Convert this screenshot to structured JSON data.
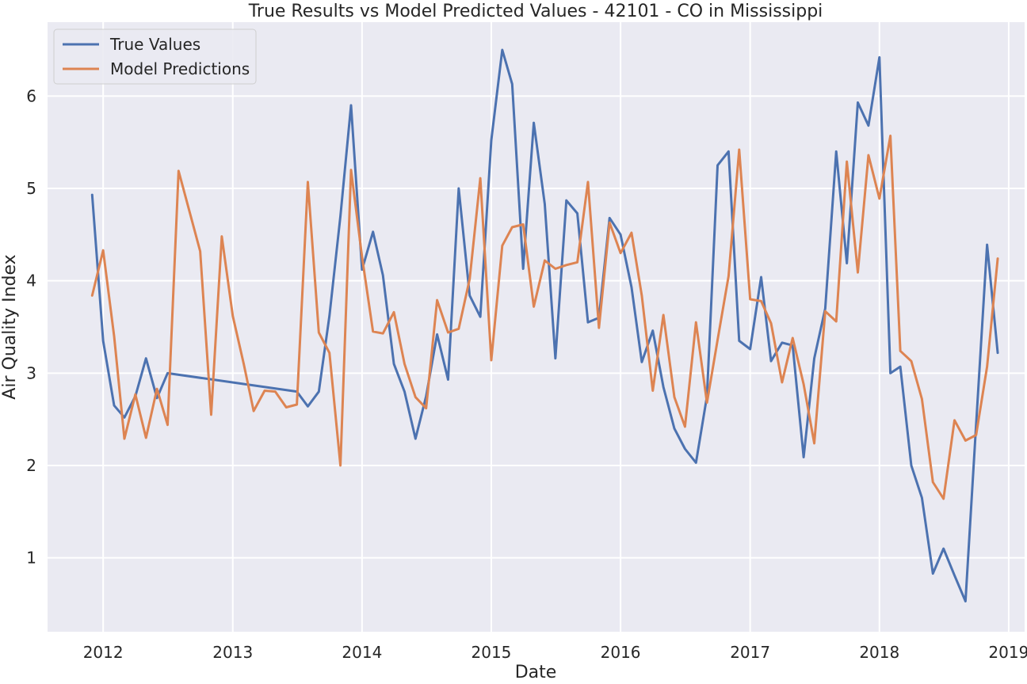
{
  "chart_data": {
    "type": "line",
    "title": "True Results vs Model Predicted Values - 42101 - CO in Mississippi",
    "xlabel": "Date",
    "ylabel": "Air Quality Index",
    "xlim": [
      "2011-07-28",
      "2019-02-15"
    ],
    "ylim": [
      0.2,
      6.8
    ],
    "x_ticks": [
      "2012",
      "2013",
      "2014",
      "2015",
      "2016",
      "2017",
      "2018",
      "2019"
    ],
    "y_ticks": [
      "1",
      "2",
      "3",
      "4",
      "5",
      "6"
    ],
    "grid": true,
    "legend_position": "top-left",
    "colors": {
      "background": "#eaeaf2",
      "grid": "#ffffff",
      "true_values": "#4c72b0",
      "model_predictions": "#dd8452"
    },
    "series": [
      {
        "name": "True Values",
        "points": [
          [
            "2011-12-01",
            4.93
          ],
          [
            "2012-01-01",
            3.35
          ],
          [
            "2012-02-01",
            2.65
          ],
          [
            "2012-03-01",
            2.52
          ],
          [
            "2012-04-01",
            2.75
          ],
          [
            "2012-05-01",
            3.16
          ],
          [
            "2012-06-01",
            2.73
          ],
          [
            "2012-07-01",
            3.0
          ],
          [
            "2013-07-01",
            2.8
          ],
          [
            "2013-08-01",
            2.64
          ],
          [
            "2013-09-01",
            2.8
          ],
          [
            "2013-10-01",
            3.62
          ],
          [
            "2013-11-01",
            4.7
          ],
          [
            "2013-12-01",
            5.9
          ],
          [
            "2014-01-01",
            4.12
          ],
          [
            "2014-02-01",
            4.53
          ],
          [
            "2014-03-01",
            4.06
          ],
          [
            "2014-04-01",
            3.1
          ],
          [
            "2014-05-01",
            2.8
          ],
          [
            "2014-06-01",
            2.29
          ],
          [
            "2014-07-01",
            2.75
          ],
          [
            "2014-08-01",
            3.42
          ],
          [
            "2014-09-01",
            2.93
          ],
          [
            "2014-10-01",
            5.0
          ],
          [
            "2014-11-01",
            3.84
          ],
          [
            "2014-12-01",
            3.61
          ],
          [
            "2015-01-01",
            5.52
          ],
          [
            "2015-02-01",
            6.5
          ],
          [
            "2015-03-01",
            6.13
          ],
          [
            "2015-04-01",
            4.13
          ],
          [
            "2015-05-01",
            5.71
          ],
          [
            "2015-06-01",
            4.83
          ],
          [
            "2015-07-01",
            3.16
          ],
          [
            "2015-08-01",
            4.87
          ],
          [
            "2015-09-01",
            4.73
          ],
          [
            "2015-10-01",
            3.55
          ],
          [
            "2015-11-01",
            3.6
          ],
          [
            "2015-12-01",
            4.68
          ],
          [
            "2016-01-01",
            4.5
          ],
          [
            "2016-02-01",
            3.93
          ],
          [
            "2016-03-01",
            3.12
          ],
          [
            "2016-04-01",
            3.46
          ],
          [
            "2016-05-01",
            2.85
          ],
          [
            "2016-06-01",
            2.4
          ],
          [
            "2016-07-01",
            2.18
          ],
          [
            "2016-08-01",
            2.03
          ],
          [
            "2016-09-01",
            2.75
          ],
          [
            "2016-10-01",
            5.25
          ],
          [
            "2016-11-01",
            5.4
          ],
          [
            "2016-12-01",
            3.35
          ],
          [
            "2017-01-01",
            3.26
          ],
          [
            "2017-02-01",
            4.04
          ],
          [
            "2017-03-01",
            3.13
          ],
          [
            "2017-04-01",
            3.33
          ],
          [
            "2017-05-01",
            3.3
          ],
          [
            "2017-06-01",
            2.09
          ],
          [
            "2017-07-01",
            3.16
          ],
          [
            "2017-08-01",
            3.7
          ],
          [
            "2017-09-01",
            5.4
          ],
          [
            "2017-10-01",
            4.19
          ],
          [
            "2017-11-01",
            5.93
          ],
          [
            "2017-12-01",
            5.68
          ],
          [
            "2018-01-01",
            6.42
          ],
          [
            "2018-02-01",
            3.0
          ],
          [
            "2018-03-01",
            3.07
          ],
          [
            "2018-04-01",
            2.0
          ],
          [
            "2018-05-01",
            1.65
          ],
          [
            "2018-06-01",
            0.83
          ],
          [
            "2018-07-01",
            1.1
          ],
          [
            "2018-08-01",
            0.81
          ],
          [
            "2018-09-01",
            0.53
          ],
          [
            "2018-10-01",
            2.44
          ],
          [
            "2018-11-01",
            4.39
          ],
          [
            "2018-12-01",
            3.22
          ]
        ]
      },
      {
        "name": "Model Predictions",
        "points": [
          [
            "2011-12-01",
            3.84
          ],
          [
            "2012-01-01",
            4.33
          ],
          [
            "2012-02-01",
            3.4
          ],
          [
            "2012-03-01",
            2.29
          ],
          [
            "2012-04-01",
            2.77
          ],
          [
            "2012-05-01",
            2.3
          ],
          [
            "2012-06-01",
            2.83
          ],
          [
            "2012-07-01",
            2.44
          ],
          [
            "2012-08-01",
            5.19
          ],
          [
            "2012-10-01",
            4.32
          ],
          [
            "2012-11-01",
            2.55
          ],
          [
            "2012-12-01",
            4.48
          ],
          [
            "2013-01-01",
            3.62
          ],
          [
            "2013-02-01",
            3.1
          ],
          [
            "2013-03-01",
            2.59
          ],
          [
            "2013-04-01",
            2.81
          ],
          [
            "2013-05-01",
            2.8
          ],
          [
            "2013-06-01",
            2.63
          ],
          [
            "2013-07-01",
            2.66
          ],
          [
            "2013-08-01",
            5.07
          ],
          [
            "2013-09-01",
            3.44
          ],
          [
            "2013-10-01",
            3.22
          ],
          [
            "2013-11-01",
            2.0
          ],
          [
            "2013-12-01",
            5.2
          ],
          [
            "2014-01-01",
            4.26
          ],
          [
            "2014-02-01",
            3.45
          ],
          [
            "2014-03-01",
            3.43
          ],
          [
            "2014-04-01",
            3.66
          ],
          [
            "2014-05-01",
            3.1
          ],
          [
            "2014-06-01",
            2.74
          ],
          [
            "2014-07-01",
            2.62
          ],
          [
            "2014-08-01",
            3.79
          ],
          [
            "2014-09-01",
            3.44
          ],
          [
            "2014-10-01",
            3.48
          ],
          [
            "2014-11-01",
            4.02
          ],
          [
            "2014-12-01",
            5.11
          ],
          [
            "2015-01-01",
            3.14
          ],
          [
            "2015-02-01",
            4.38
          ],
          [
            "2015-03-01",
            4.58
          ],
          [
            "2015-04-01",
            4.61
          ],
          [
            "2015-05-01",
            3.72
          ],
          [
            "2015-06-01",
            4.22
          ],
          [
            "2015-07-01",
            4.13
          ],
          [
            "2015-08-01",
            4.17
          ],
          [
            "2015-09-01",
            4.2
          ],
          [
            "2015-10-01",
            5.07
          ],
          [
            "2015-11-01",
            3.49
          ],
          [
            "2015-12-01",
            4.63
          ],
          [
            "2016-01-01",
            4.3
          ],
          [
            "2016-02-01",
            4.52
          ],
          [
            "2016-03-01",
            3.84
          ],
          [
            "2016-04-01",
            2.81
          ],
          [
            "2016-05-01",
            3.63
          ],
          [
            "2016-06-01",
            2.74
          ],
          [
            "2016-07-01",
            2.42
          ],
          [
            "2016-08-01",
            3.55
          ],
          [
            "2016-09-01",
            2.68
          ],
          [
            "2016-10-01",
            3.36
          ],
          [
            "2016-11-01",
            4.05
          ],
          [
            "2016-12-01",
            5.42
          ],
          [
            "2017-01-01",
            3.8
          ],
          [
            "2017-02-01",
            3.78
          ],
          [
            "2017-03-01",
            3.54
          ],
          [
            "2017-04-01",
            2.9
          ],
          [
            "2017-05-01",
            3.38
          ],
          [
            "2017-06-01",
            2.88
          ],
          [
            "2017-07-01",
            2.24
          ],
          [
            "2017-08-01",
            3.67
          ],
          [
            "2017-09-01",
            3.56
          ],
          [
            "2017-10-01",
            5.29
          ],
          [
            "2017-11-01",
            4.09
          ],
          [
            "2017-12-01",
            5.36
          ],
          [
            "2018-01-01",
            4.89
          ],
          [
            "2018-02-01",
            5.57
          ],
          [
            "2018-03-01",
            3.24
          ],
          [
            "2018-04-01",
            3.13
          ],
          [
            "2018-05-01",
            2.72
          ],
          [
            "2018-06-01",
            1.82
          ],
          [
            "2018-07-01",
            1.64
          ],
          [
            "2018-08-01",
            2.49
          ],
          [
            "2018-09-01",
            2.27
          ],
          [
            "2018-10-01",
            2.33
          ],
          [
            "2018-11-01",
            3.07
          ],
          [
            "2018-12-01",
            4.24
          ]
        ]
      }
    ]
  }
}
